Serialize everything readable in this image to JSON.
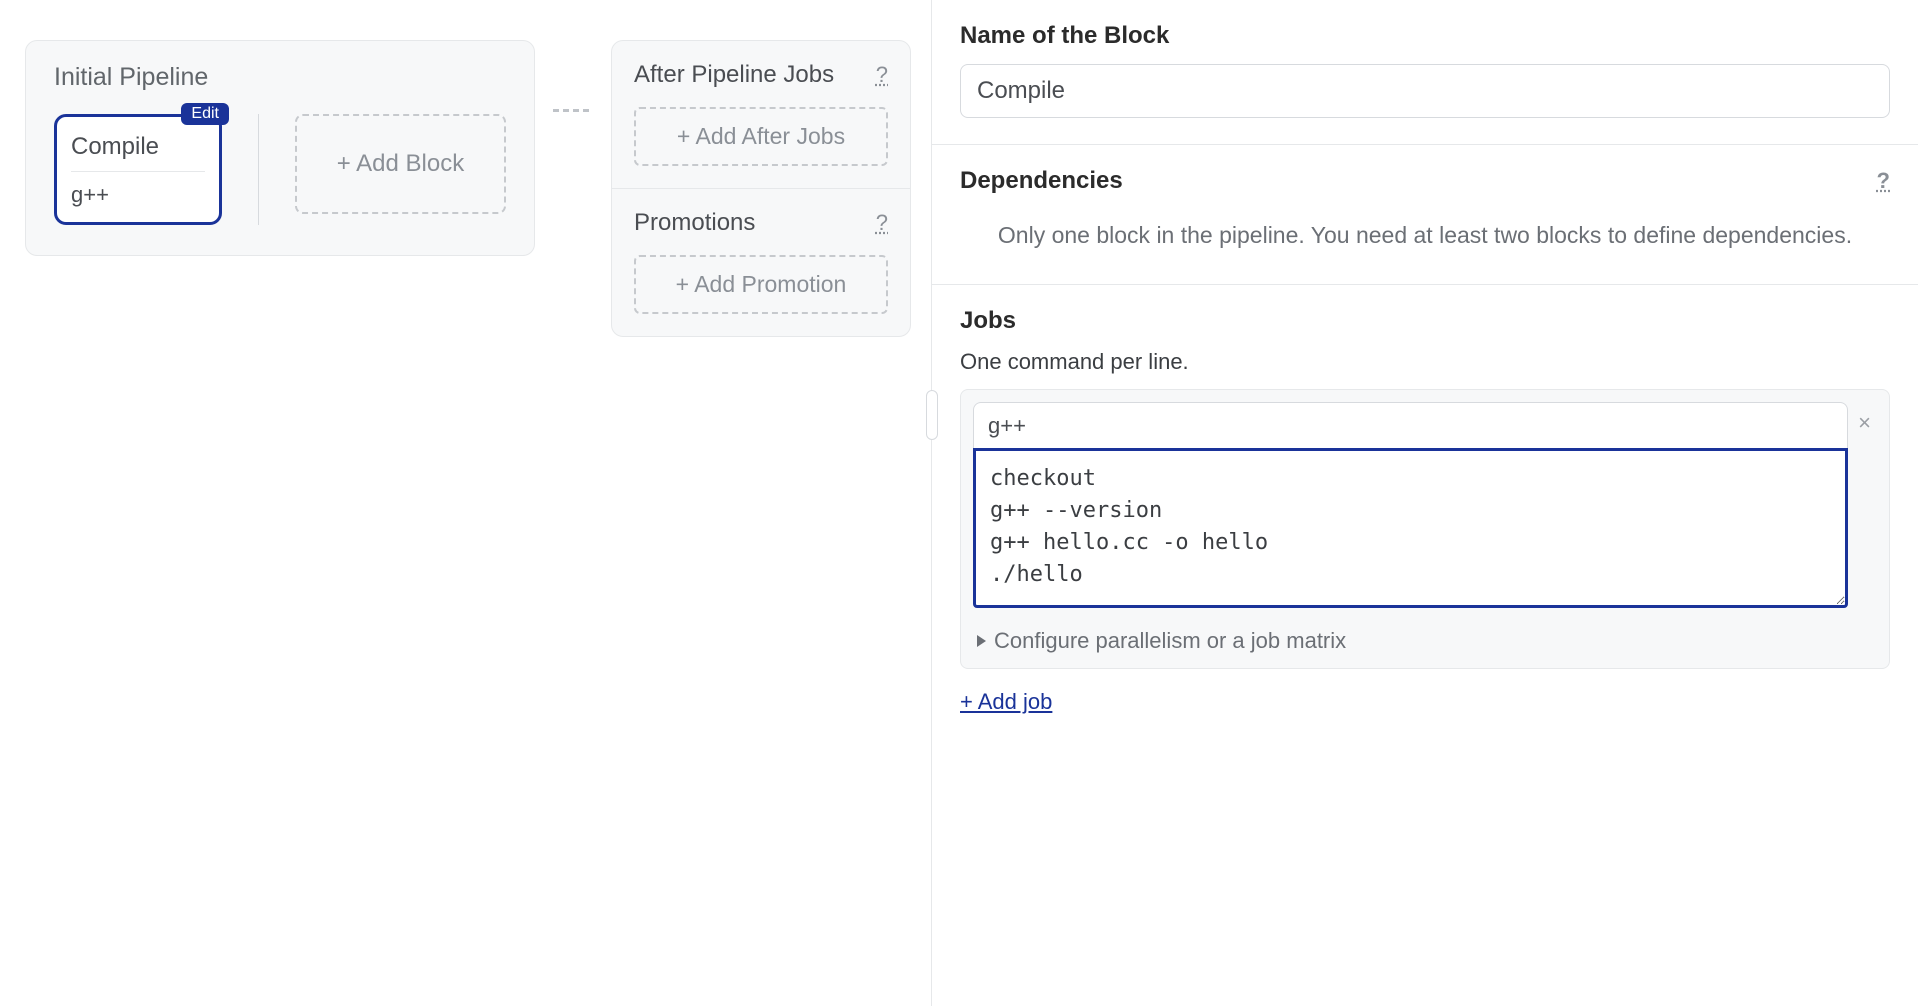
{
  "pipeline": {
    "title": "Initial Pipeline",
    "block": {
      "edit_badge": "Edit",
      "name": "Compile",
      "job": "g++"
    },
    "add_block_label": "+ Add Block"
  },
  "side": {
    "after_jobs": {
      "title": "After Pipeline Jobs",
      "help": "?",
      "add_label": "+ Add After Jobs"
    },
    "promotions": {
      "title": "Promotions",
      "help": "?",
      "add_label": "+ Add Promotion"
    }
  },
  "panel": {
    "name": {
      "label": "Name of the Block",
      "value": "Compile"
    },
    "dependencies": {
      "label": "Dependencies",
      "help": "?",
      "message": "Only one block in the pipeline. You need at least two blocks to define dependencies."
    },
    "jobs": {
      "label": "Jobs",
      "sublabel": "One command per line.",
      "job": {
        "name": "g++",
        "commands": "checkout\ng++ --version\ng++ hello.cc -o hello\n./hello"
      },
      "remove_icon": "×",
      "parallelism_label": "Configure parallelism or a job matrix",
      "add_job_label": "+ Add job"
    }
  },
  "colors": {
    "accent": "#1a3399",
    "bg_muted": "#f7f8f9",
    "border": "#e6e8ea",
    "border_dashed": "#c6c9cd",
    "text_primary": "#2b2b2b",
    "text_muted": "#6b6f75"
  }
}
